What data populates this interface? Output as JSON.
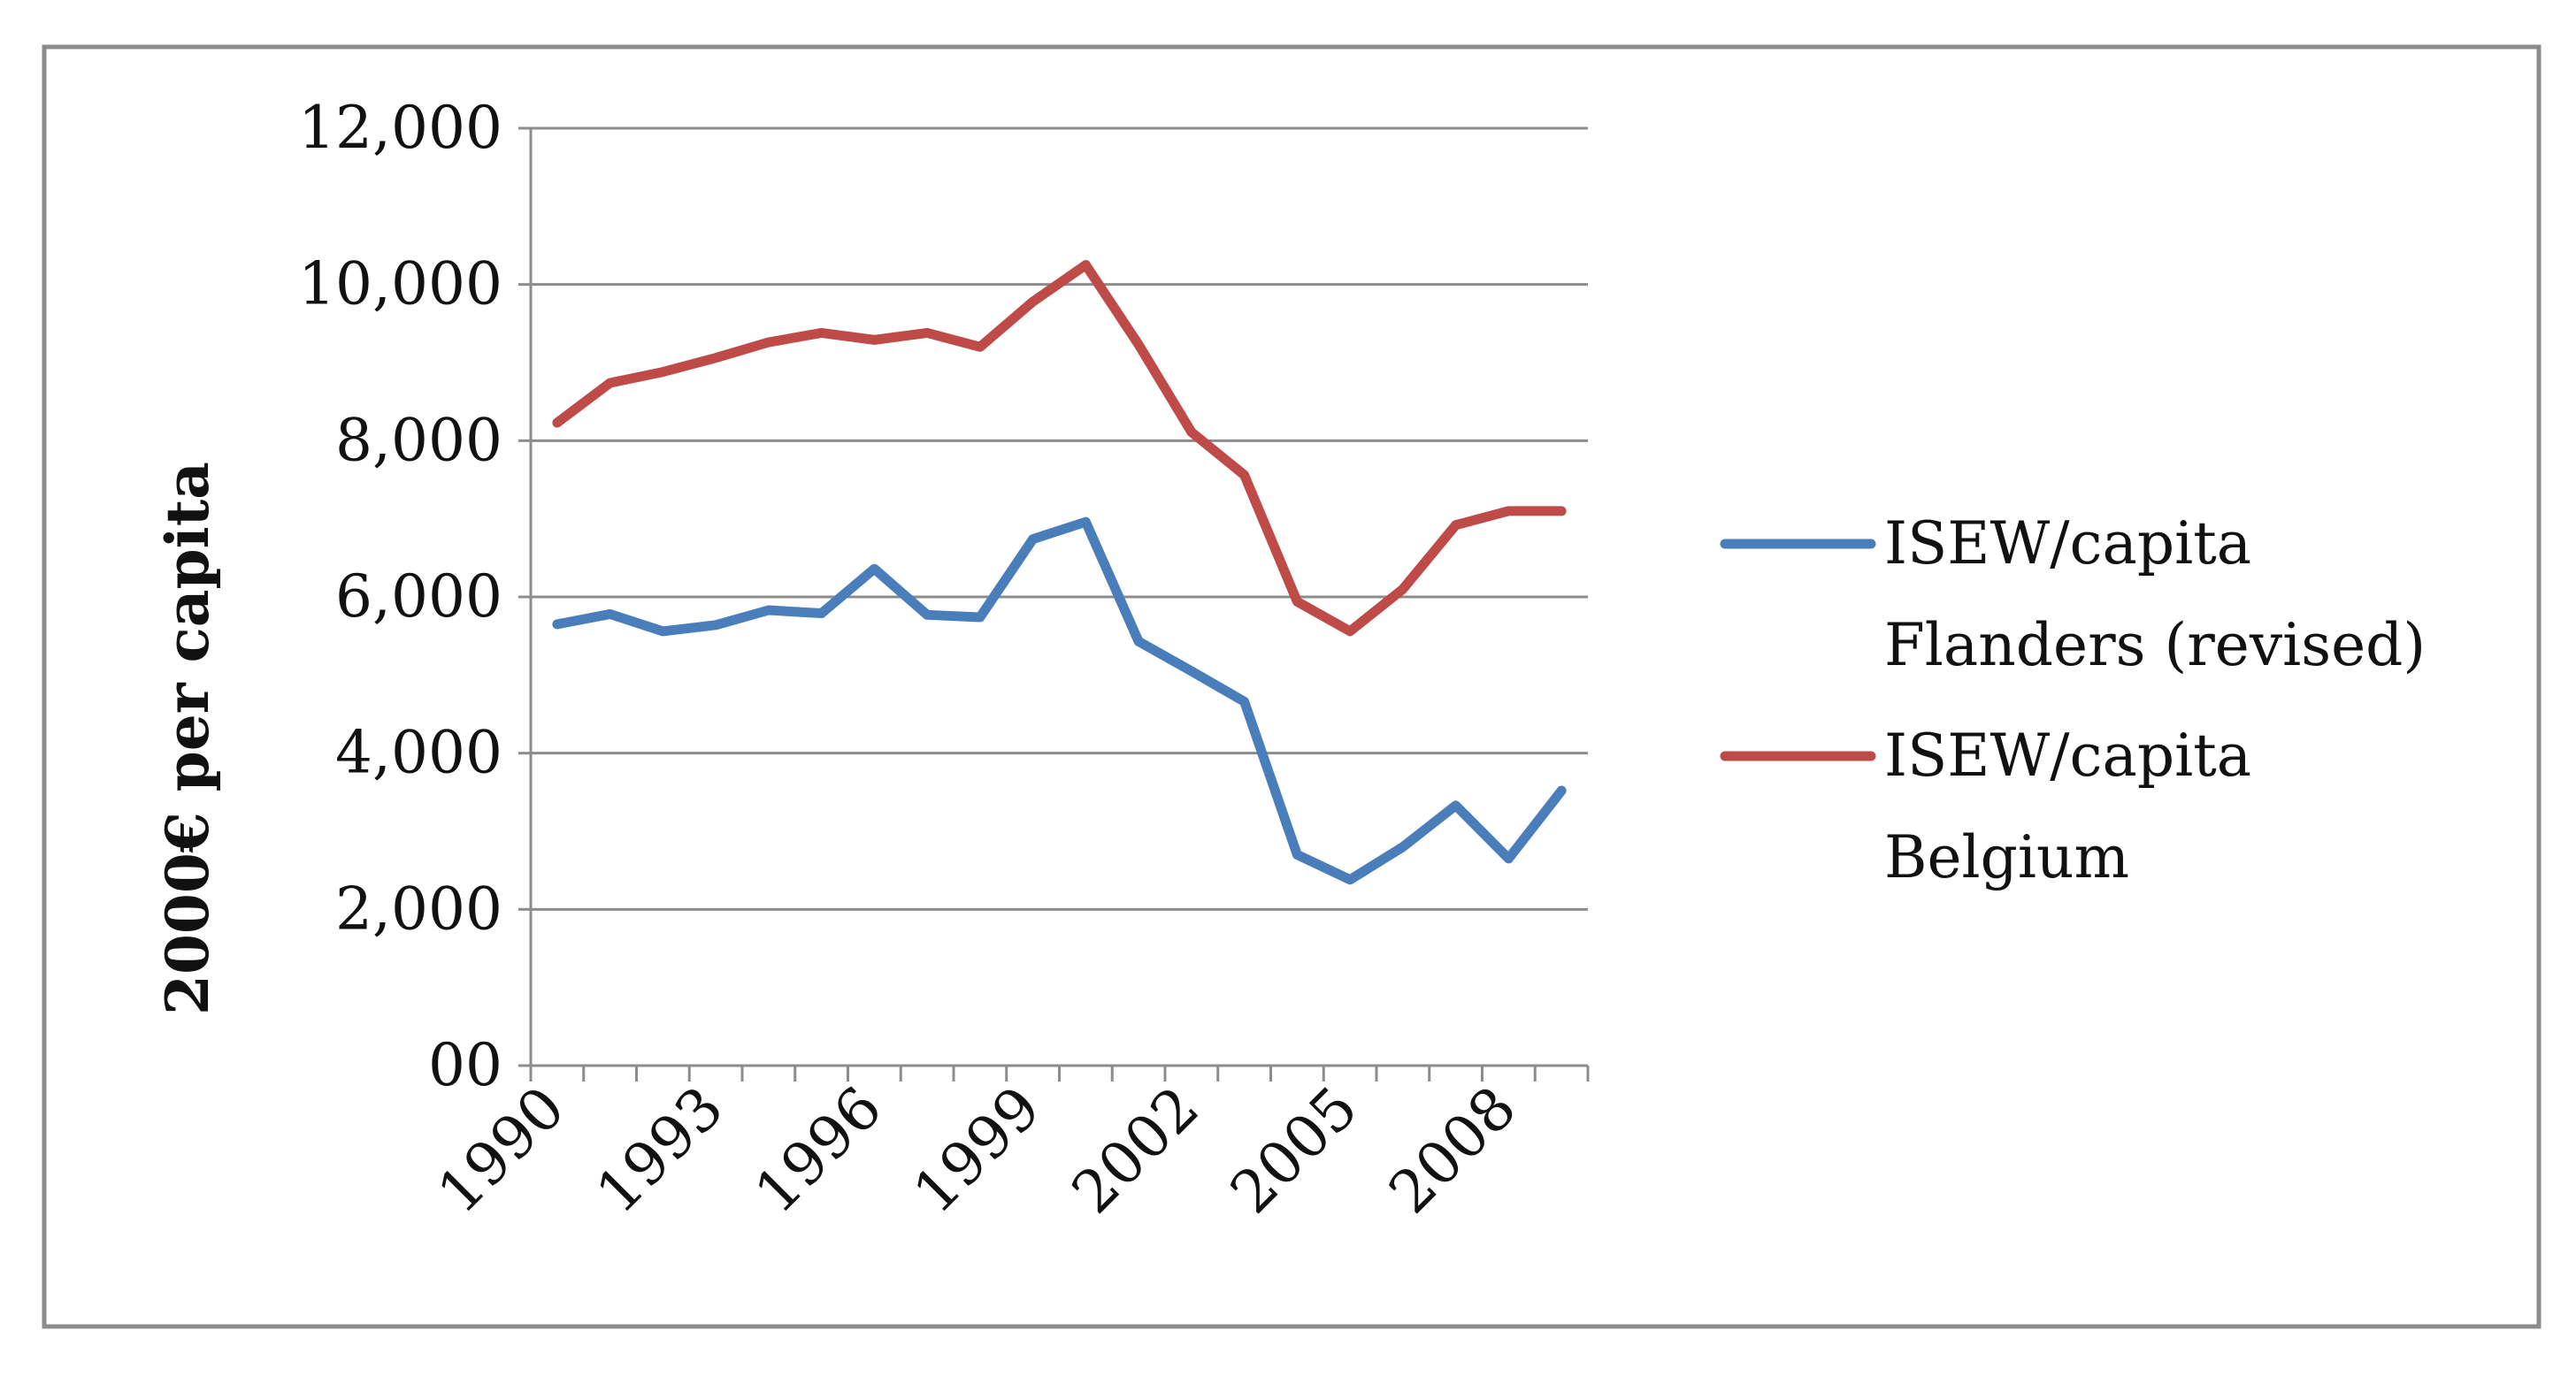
{
  "chart_data": {
    "type": "line",
    "title": "",
    "xlabel": "",
    "ylabel": "2000€ per capita",
    "ylim": [
      0,
      12000
    ],
    "yticks": [
      0,
      2000,
      4000,
      6000,
      8000,
      10000,
      12000
    ],
    "ytick_labels": [
      "00",
      "2,000",
      "4,000",
      "6,000",
      "8,000",
      "10,000",
      "12,000"
    ],
    "x": [
      1990,
      1991,
      1992,
      1993,
      1994,
      1995,
      1996,
      1997,
      1998,
      1999,
      2000,
      2001,
      2002,
      2003,
      2004,
      2005,
      2006,
      2007,
      2008,
      2009
    ],
    "xtick_labels": [
      "1990",
      "1993",
      "1996",
      "1999",
      "2002",
      "2005",
      "2008"
    ],
    "xtick_years": [
      1990,
      1993,
      1996,
      1999,
      2002,
      2005,
      2008
    ],
    "grid": true,
    "legend_position": "right",
    "series": [
      {
        "name": "ISEW/capita Flanders (revised)",
        "legend_lines": [
          "ISEW/capita",
          "Flanders (revised)"
        ],
        "color": "#4a7ebb",
        "values": [
          5650,
          5780,
          5560,
          5640,
          5830,
          5790,
          6360,
          5770,
          5740,
          6740,
          6960,
          5430,
          5050,
          4660,
          2700,
          2380,
          2800,
          3330,
          2650,
          3520
        ]
      },
      {
        "name": "ISEW/capita Belgium",
        "legend_lines": [
          "ISEW/capita",
          "Belgium"
        ],
        "color": "#be4b48",
        "values": [
          8230,
          8740,
          8880,
          9060,
          9260,
          9380,
          9290,
          9380,
          9200,
          9780,
          10250,
          9230,
          8110,
          7560,
          5940,
          5560,
          6100,
          6920,
          7100,
          7100
        ]
      }
    ]
  }
}
